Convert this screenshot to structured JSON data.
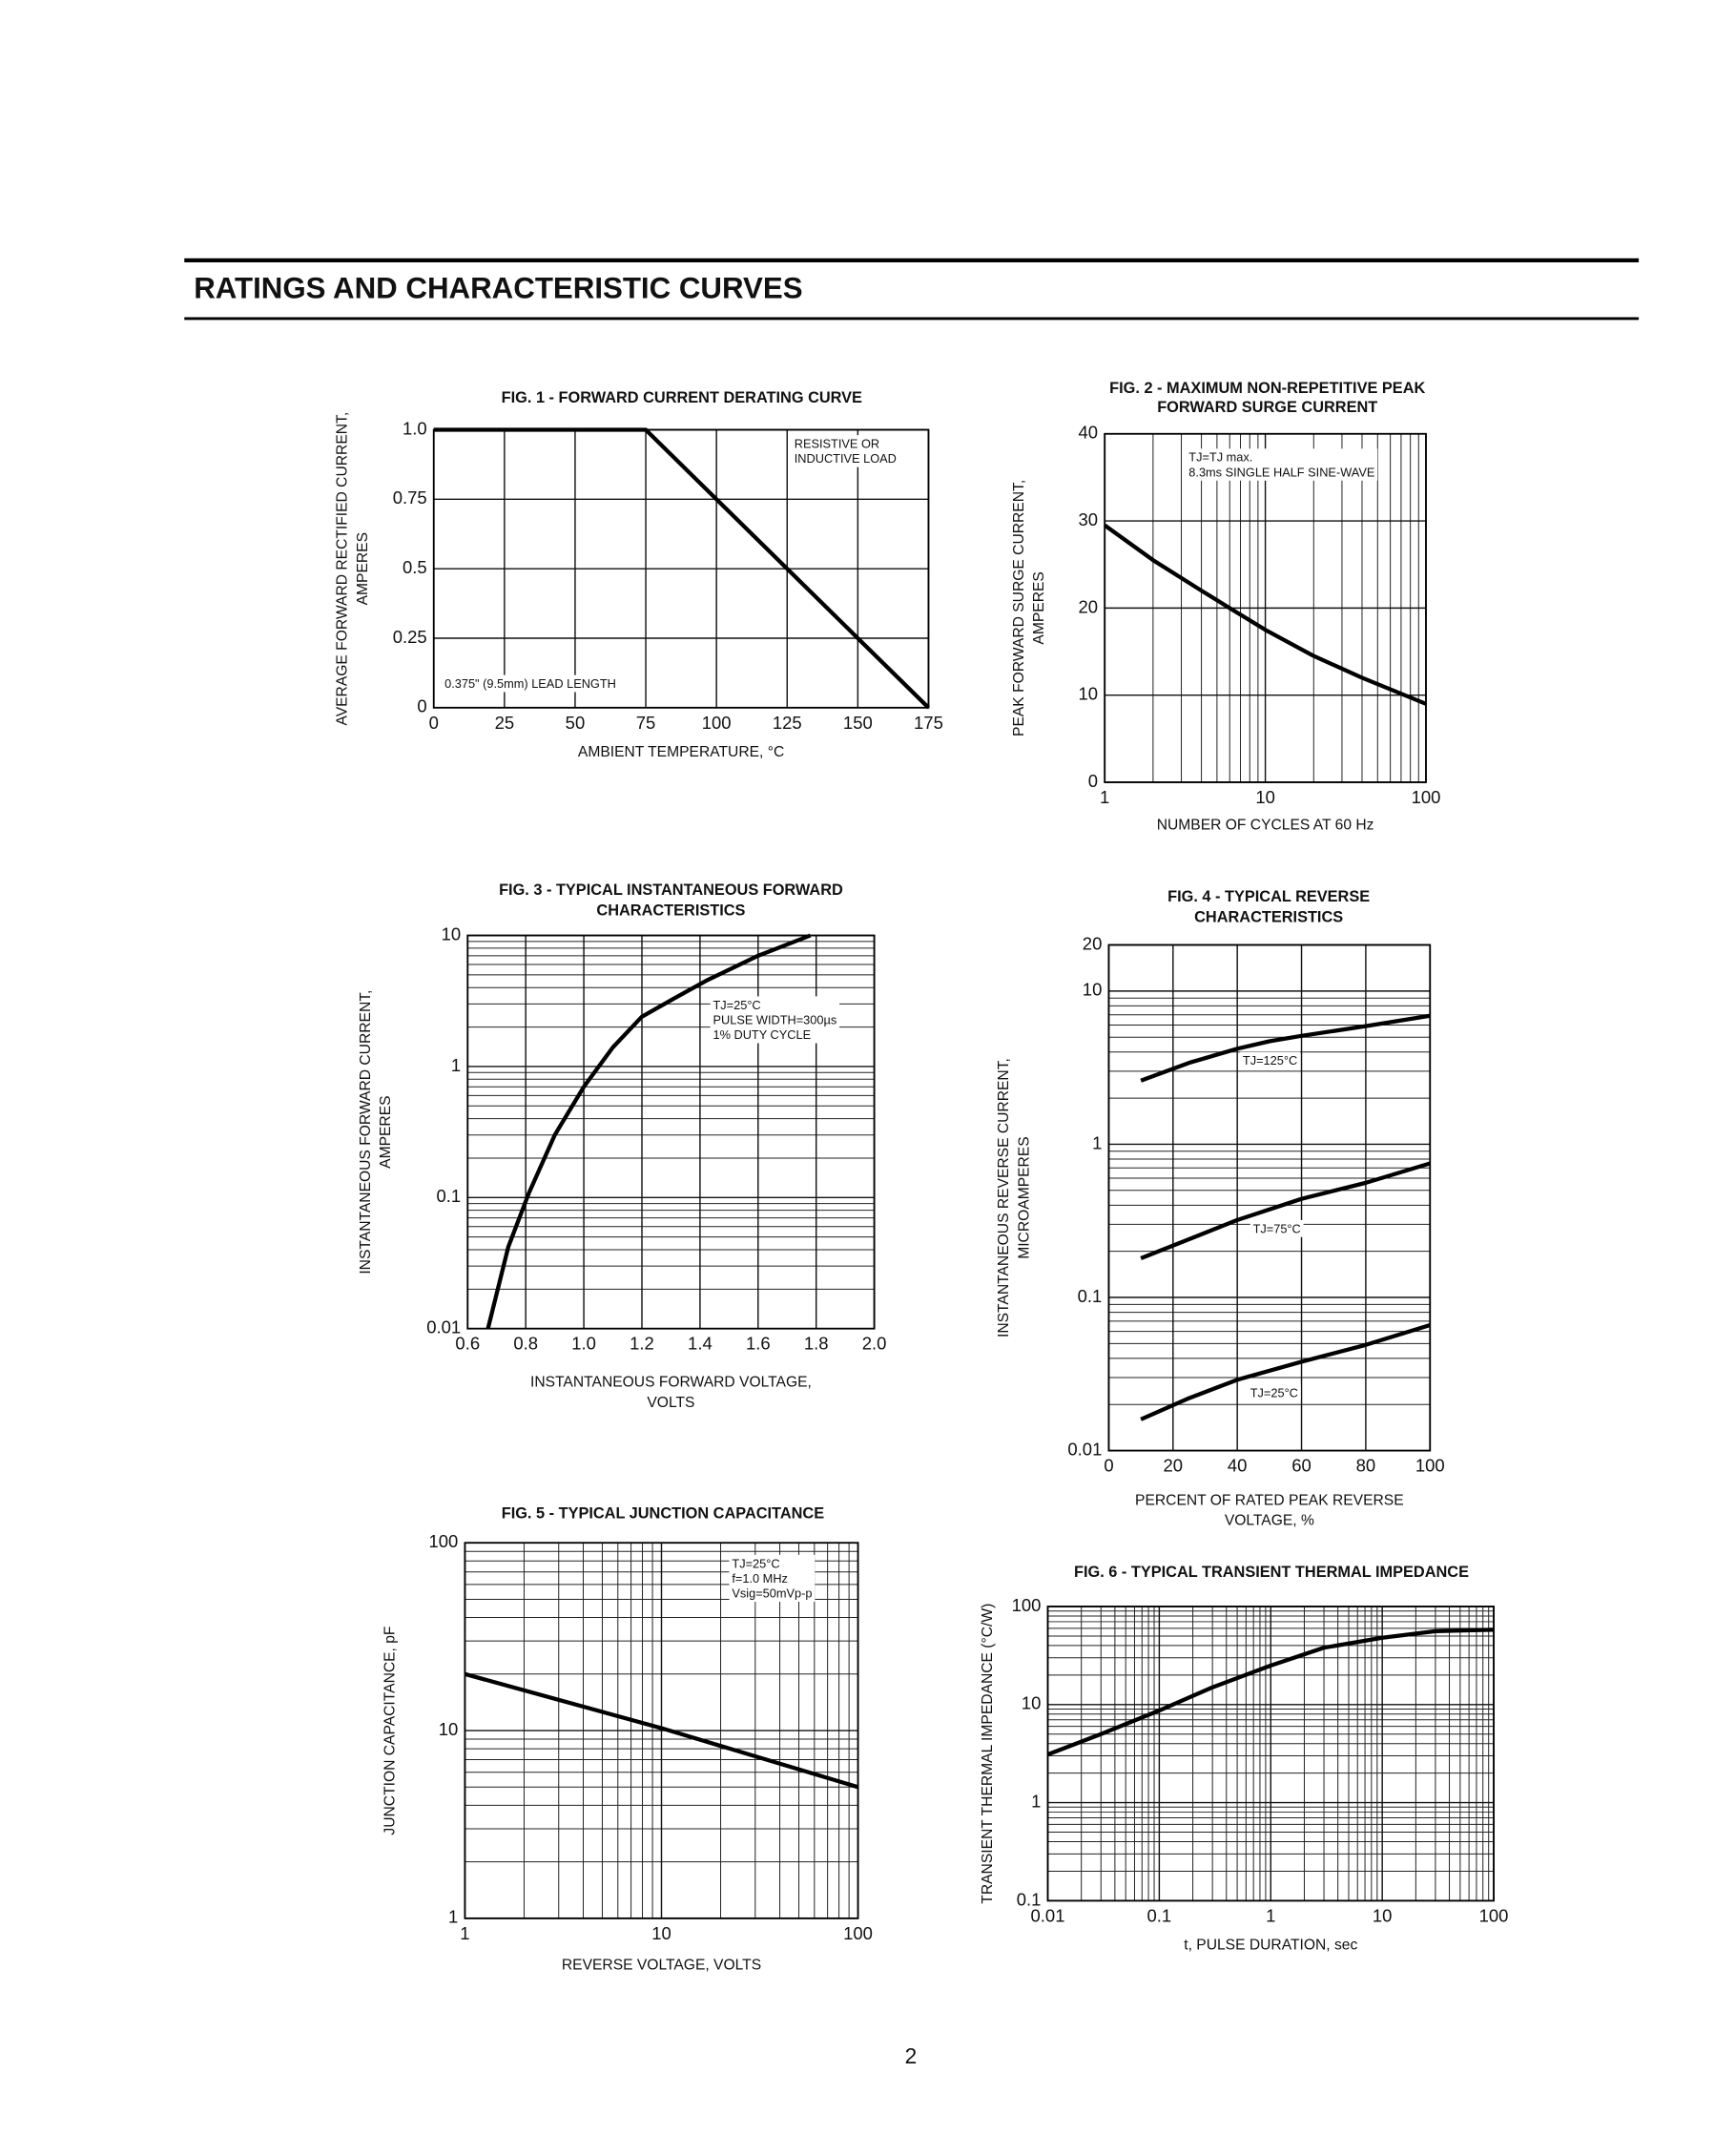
{
  "header": {
    "title": "RATINGS AND CHARACTERISTIC CURVES"
  },
  "page_number": "2",
  "chart_data": [
    {
      "type": "line",
      "title": [
        "FIG. 1 - FORWARD CURRENT DERATING CURVE"
      ],
      "xlabel": [
        "AMBIENT TEMPERATURE, °C"
      ],
      "ylabel": [
        "AVERAGE FORWARD RECTIFIED CURRENT,",
        "AMPERES"
      ],
      "xlim": [
        0,
        175
      ],
      "ylim": [
        0,
        1
      ],
      "xticks": [
        0,
        25,
        50,
        75,
        100,
        125,
        150,
        175
      ],
      "yticks": [
        0,
        0.25,
        0.5,
        0.75,
        {
          "value": 1,
          "label": "1.0"
        }
      ],
      "grid": true,
      "annotations": [
        [
          "RESISTIVE OR",
          "INDUCTIVE LOAD"
        ],
        [
          "0.375\" (9.5mm) LEAD LENGTH"
        ]
      ],
      "series": [
        {
          "color": "#000000",
          "x": [
            0,
            75,
            175
          ],
          "values": [
            1,
            1,
            0
          ]
        }
      ]
    },
    {
      "type": "line",
      "title": [
        "FIG. 2 - MAXIMUM NON-REPETITIVE PEAK",
        "FORWARD SURGE CURRENT"
      ],
      "xlabel": [
        "NUMBER OF CYCLES AT 60 Hz"
      ],
      "ylabel": [
        "PEAK FORWARD SURGE CURRENT,",
        "AMPERES"
      ],
      "log_x": true,
      "xlim": [
        1,
        100
      ],
      "ylim": [
        0,
        40
      ],
      "xticks": [
        1,
        10,
        100
      ],
      "yticks": [
        0,
        10,
        20,
        30,
        40
      ],
      "grid": true,
      "minor_grid": true,
      "annotations": [
        [
          "TJ=TJ max.",
          "8.3ms SINGLE HALF SINE-WAVE"
        ]
      ],
      "series": [
        {
          "color": "#000000",
          "x": [
            1,
            2,
            4,
            6,
            10,
            20,
            40,
            100
          ],
          "values": [
            29.5,
            25.5,
            22,
            20,
            17.5,
            14.5,
            12,
            9
          ]
        }
      ]
    },
    {
      "type": "line",
      "title": [
        "FIG. 3 - TYPICAL INSTANTANEOUS FORWARD",
        "CHARACTERISTICS"
      ],
      "xlabel": [
        "INSTANTANEOUS FORWARD VOLTAGE,",
        "VOLTS"
      ],
      "ylabel": [
        "INSTANTANEOUS FORWARD CURRENT,",
        "AMPERES"
      ],
      "log_y": true,
      "xlim": [
        0.6,
        2
      ],
      "ylim": [
        0.01,
        10
      ],
      "xticks": [
        0.6,
        0.8,
        {
          "value": 1,
          "label": "1.0"
        },
        1.2,
        1.4,
        1.6,
        1.8,
        {
          "value": 2,
          "label": "2.0"
        }
      ],
      "yticks": [
        0.01,
        0.1,
        1,
        10
      ],
      "grid": true,
      "minor_grid": true,
      "annotations": [
        [
          "TJ=25°C",
          "PULSE WIDTH=300µs",
          "1% DUTY CYCLE"
        ]
      ],
      "series": [
        {
          "color": "#000000",
          "x": [
            0.67,
            0.74,
            0.81,
            0.9,
            1,
            1.1,
            1.2,
            1.31,
            1.42,
            1.6,
            1.78
          ],
          "values": [
            0.01,
            0.042,
            0.107,
            0.3,
            0.7,
            1.4,
            2.4,
            3.3,
            4.5,
            7,
            10
          ]
        }
      ]
    },
    {
      "type": "line",
      "title": [
        "FIG. 4 - TYPICAL REVERSE",
        "CHARACTERISTICS"
      ],
      "xlabel": [
        "PERCENT OF RATED PEAK REVERSE",
        "VOLTAGE, %"
      ],
      "ylabel": [
        "INSTANTANEOUS REVERSE CURRENT,",
        "MICROAMPERES"
      ],
      "log_y": true,
      "xlim": [
        0,
        100
      ],
      "ylim": [
        0.01,
        20
      ],
      "xticks": [
        0,
        20,
        40,
        60,
        80,
        100
      ],
      "yticks": [
        0.01,
        0.1,
        1,
        10,
        20
      ],
      "grid": true,
      "minor_grid": true,
      "series": [
        {
          "name": "TJ=125°C",
          "color": "#000000",
          "x": [
            10,
            25,
            40,
            50,
            60,
            80,
            100
          ],
          "values": [
            2.6,
            3.4,
            4.2,
            4.7,
            5.1,
            5.9,
            6.9
          ]
        },
        {
          "name": "TJ=75°C",
          "color": "#000000",
          "x": [
            10,
            25,
            40,
            60,
            80,
            100
          ],
          "values": [
            0.18,
            0.24,
            0.32,
            0.44,
            0.56,
            0.75
          ]
        },
        {
          "name": "TJ=25°C",
          "color": "#000000",
          "x": [
            10,
            25,
            40,
            60,
            80,
            100
          ],
          "values": [
            0.016,
            0.022,
            0.029,
            0.038,
            0.049,
            0.066
          ]
        }
      ]
    },
    {
      "type": "line",
      "title": [
        "FIG. 5 - TYPICAL JUNCTION CAPACITANCE"
      ],
      "xlabel": [
        "REVERSE VOLTAGE, VOLTS"
      ],
      "ylabel": [
        "JUNCTION CAPACITANCE, pF"
      ],
      "log_x": true,
      "log_y": true,
      "xlim": [
        1,
        100
      ],
      "ylim": [
        1,
        100
      ],
      "xticks": [
        1,
        10,
        100
      ],
      "yticks": [
        1,
        10,
        100
      ],
      "grid": true,
      "minor_grid": true,
      "annotations": [
        [
          "TJ=25°C",
          "f=1.0 MHz",
          "Vsig=50mVp-p"
        ]
      ],
      "series": [
        {
          "color": "#000000",
          "x": [
            1,
            10,
            100
          ],
          "values": [
            20,
            10.3,
            5
          ]
        }
      ]
    },
    {
      "type": "line",
      "title": [
        "FIG. 6 - TYPICAL TRANSIENT THERMAL IMPEDANCE"
      ],
      "xlabel": [
        "t, PULSE DURATION, sec"
      ],
      "ylabel": [
        "TRANSIENT THERMAL IMPEDANCE (°C/W)"
      ],
      "log_x": true,
      "log_y": true,
      "xlim": [
        0.01,
        100
      ],
      "ylim": [
        0.1,
        100
      ],
      "xticks": [
        0.01,
        0.1,
        1,
        10,
        100
      ],
      "yticks": [
        0.1,
        1,
        10,
        100
      ],
      "grid": true,
      "minor_grid": true,
      "series": [
        {
          "color": "#000000",
          "x": [
            0.01,
            0.03,
            0.1,
            0.3,
            1,
            3,
            10,
            30,
            100
          ],
          "values": [
            3.1,
            5,
            8.7,
            15,
            25,
            38,
            48,
            56,
            58
          ]
        }
      ]
    }
  ]
}
